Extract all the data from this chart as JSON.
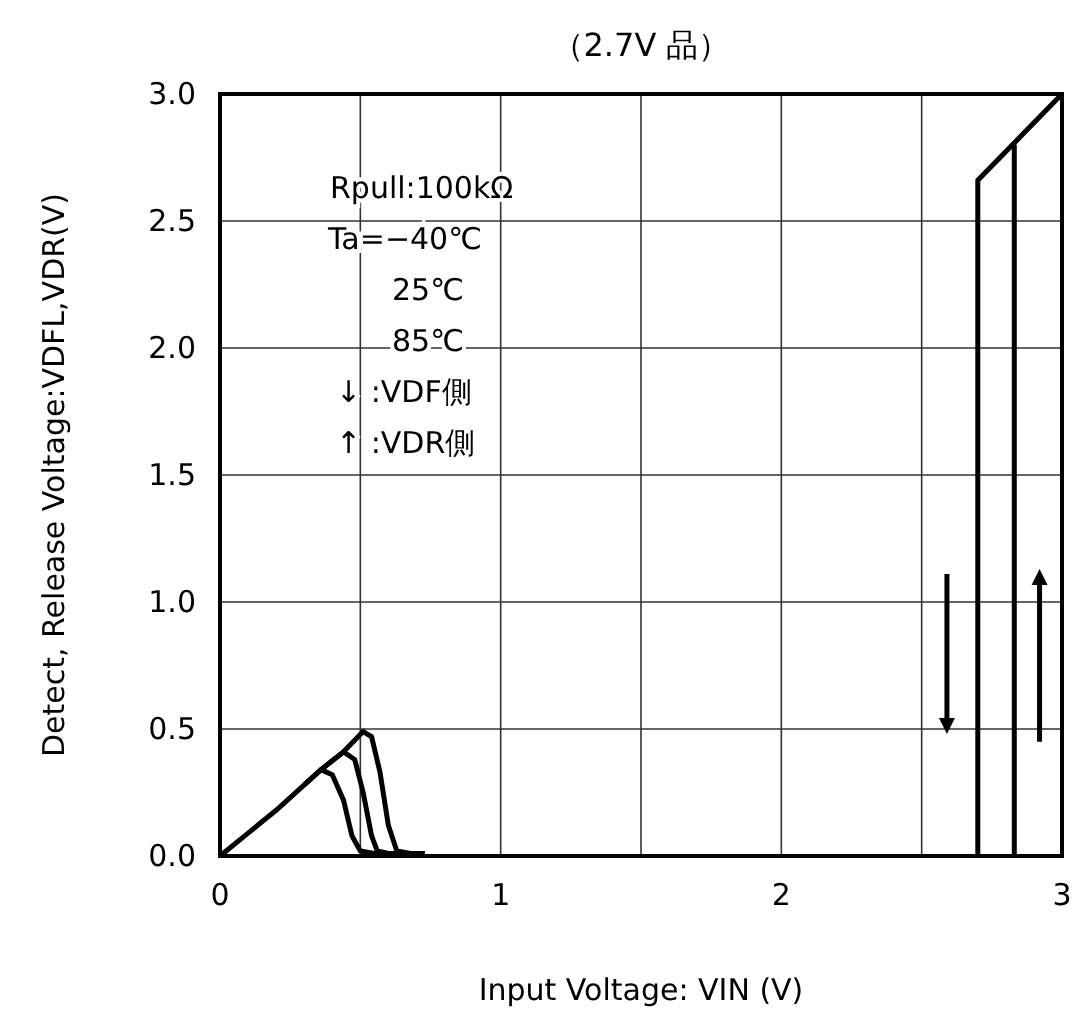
{
  "chart_data": {
    "type": "line",
    "title": "（2.7V 品）",
    "xlabel": "Input Voltage:  VIN (V)",
    "ylabel": "Detect, Release Voltage:VDFL,VDR(V)",
    "xlim": [
      0,
      3
    ],
    "ylim": [
      0,
      3
    ],
    "xticks": [
      0,
      {
        "value": 0.5,
        "label": null
      },
      1,
      {
        "value": 1.5,
        "label": null
      },
      2,
      {
        "value": 2.5,
        "label": null
      },
      3
    ],
    "yticks": [
      {
        "value": 0,
        "label": "0.0"
      },
      {
        "value": 0.5,
        "label": "0.5"
      },
      {
        "value": 1,
        "label": "1.0"
      },
      {
        "value": 1.5,
        "label": "1.5"
      },
      {
        "value": 2,
        "label": "2.0"
      },
      {
        "value": 2.5,
        "label": "2.5"
      },
      {
        "value": 3,
        "label": "3.0"
      }
    ],
    "grid": true,
    "marker": "none",
    "line_style": "solid",
    "series": [
      {
        "color": "#000000",
        "x": [
          0,
          0.1,
          0.2,
          0.3,
          0.36,
          0.4,
          0.44,
          0.47,
          0.5,
          0.55,
          0.7
        ],
        "values": [
          0,
          0.09,
          0.18,
          0.28,
          0.34,
          0.32,
          0.22,
          0.08,
          0.02,
          0.01,
          0.01
        ]
      },
      {
        "color": "#000000",
        "x": [
          0.3,
          0.36,
          0.44,
          0.48,
          0.51,
          0.54,
          0.56,
          0.6,
          0.7
        ],
        "values": [
          0.28,
          0.34,
          0.41,
          0.38,
          0.25,
          0.08,
          0.02,
          0.01,
          0.01
        ]
      },
      {
        "color": "#000000",
        "x": [
          0.36,
          0.44,
          0.51,
          0.54,
          0.57,
          0.6,
          0.63,
          0.68,
          0.73
        ],
        "values": [
          0.34,
          0.41,
          0.49,
          0.47,
          0.33,
          0.12,
          0.02,
          0.01,
          0.01
        ]
      },
      {
        "color": "#000000",
        "x": [
          2.7,
          2.7,
          3
        ],
        "values": [
          0,
          2.66,
          3
        ]
      },
      {
        "color": "#000000",
        "x": [
          2.83,
          2.83
        ],
        "values": [
          0,
          2.8
        ]
      }
    ],
    "annotations": [
      "Rpull:100kΩ",
      "Ta=−40℃",
      "25℃",
      "85℃",
      "↓ :VDF側",
      "↑ :VDR側"
    ]
  }
}
